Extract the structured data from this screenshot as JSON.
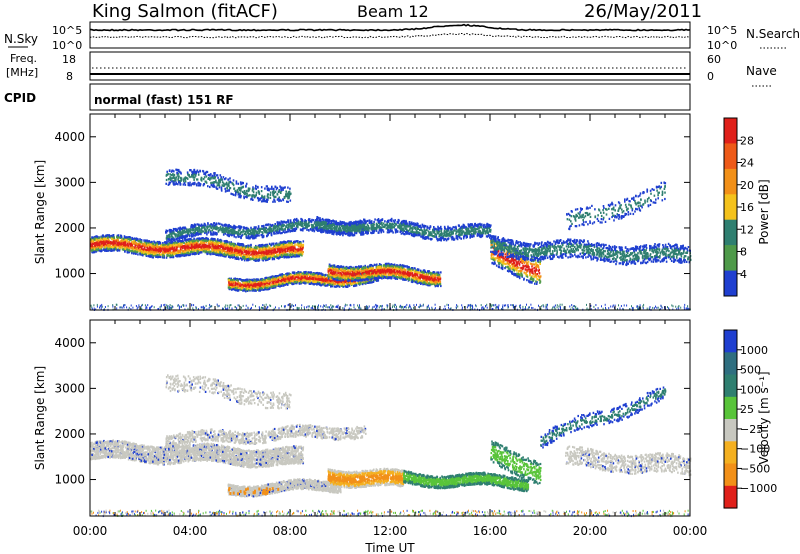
{
  "header": {
    "station": "King Salmon (fitACF)",
    "beam": "Beam 12",
    "date": "26/May/2011"
  },
  "side_labels": {
    "nsky": "N.Sky",
    "freq": "Freq.",
    "freq_unit": "[MHz]",
    "cpid": "CPID",
    "nsearch": "N.Search",
    "nave": "Nave"
  },
  "mode_text": "normal (fast) 151 RF",
  "nsky_axis": {
    "top": "10^5",
    "bottom": "10^0"
  },
  "nsearch_axis": {
    "top": "10^5",
    "bottom": "10^0"
  },
  "freq_axis": {
    "top": "18",
    "bottom": "8"
  },
  "nave_axis": {
    "top": "60",
    "bottom": "0"
  },
  "colors": {
    "blue": "#1f3fd0",
    "teal": "#2f7f70",
    "green": "#59c43a",
    "orange": "#f29018",
    "red": "#e0201a",
    "grey": "#c8c8c0"
  },
  "chart_data": [
    {
      "type": "heatmap",
      "panel": "power",
      "ylabel": "Slant Range [km]",
      "xlabel": "Time UT",
      "xlim": [
        "00:00",
        "24:00"
      ],
      "ylim": [
        200,
        4500
      ],
      "x_ticks": [
        "00:00",
        "04:00",
        "08:00",
        "12:00",
        "16:00",
        "20:00",
        "00:00"
      ],
      "y_ticks": [
        1000,
        2000,
        3000,
        4000
      ],
      "colorbar": {
        "label": "Power [dB]",
        "ticks": [
          "28",
          "24",
          "20",
          "16",
          "12",
          "8",
          "4"
        ],
        "colors": [
          "#e0201a",
          "#ee5a18",
          "#f29018",
          "#f4c21c",
          "#2f7f70",
          "#4f9a4a",
          "#1f3fd0"
        ]
      }
    },
    {
      "type": "heatmap",
      "panel": "velocity",
      "ylabel": "Slant Range [km]",
      "xlabel": "Time UT",
      "xlim": [
        "00:00",
        "24:00"
      ],
      "ylim": [
        200,
        4500
      ],
      "x_ticks": [
        "00:00",
        "04:00",
        "08:00",
        "12:00",
        "16:00",
        "20:00",
        "00:00"
      ],
      "y_ticks": [
        1000,
        2000,
        3000,
        4000
      ],
      "colorbar": {
        "label": "Velocity [m s⁻¹]",
        "ticks": [
          "1000",
          "500",
          "100",
          "25",
          "−25",
          "−100",
          "−500",
          "−1000"
        ],
        "colors": [
          "#1f3fd0",
          "#2f6f80",
          "#2f7f70",
          "#59c43a",
          "#c8c8c0",
          "#f4b020",
          "#f29018",
          "#e0201a"
        ]
      }
    }
  ]
}
